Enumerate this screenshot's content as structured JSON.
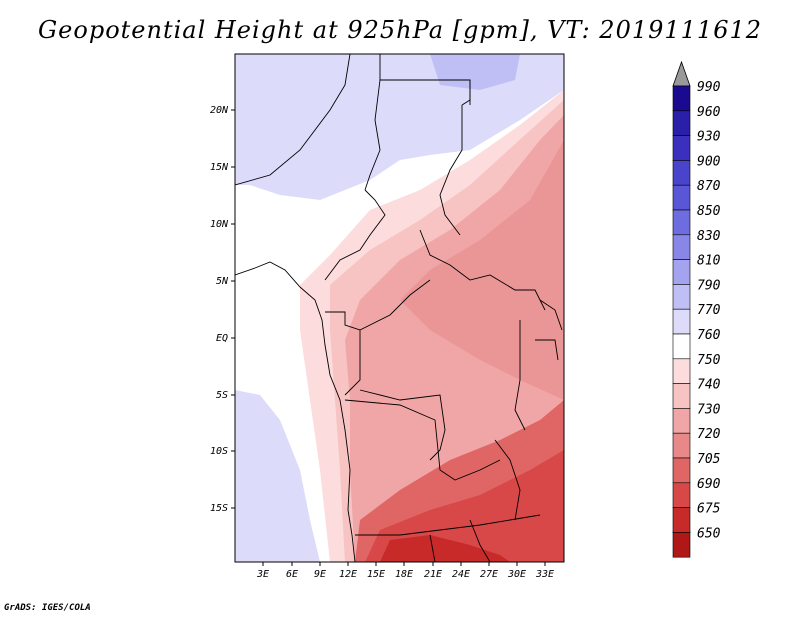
{
  "title": "Geopotential Height at 925hPa [gpm], VT: 2019111612",
  "footer": "GrADS: IGES/COLA",
  "map": {
    "lat_labels": [
      "20N",
      "15N",
      "10N",
      "5N",
      "EQ",
      "5S",
      "10S",
      "15S"
    ],
    "lon_labels": [
      "3E",
      "6E",
      "9E",
      "12E",
      "15E",
      "18E",
      "21E",
      "24E",
      "27E",
      "30E",
      "33E"
    ]
  },
  "colorbar": {
    "levels": [
      "990",
      "960",
      "930",
      "900",
      "870",
      "850",
      "830",
      "810",
      "790",
      "770",
      "760",
      "750",
      "740",
      "730",
      "720",
      "705",
      "690",
      "675",
      "650"
    ],
    "colors": [
      "#1a0a8f",
      "#2a1fa8",
      "#3a30bd",
      "#4a44cc",
      "#5a57d6",
      "#6e6de0",
      "#8887e8",
      "#a3a3f0",
      "#bfbff5",
      "#dcdcfa",
      "#ffffff",
      "#fcdcdc",
      "#f7c3c3",
      "#f0a6a6",
      "#e88888",
      "#e06666",
      "#d84848",
      "#c82a2a",
      "#b01818"
    ],
    "top_arrow_color": "#999999",
    "bottom_arrow_color": "#b01818"
  }
}
